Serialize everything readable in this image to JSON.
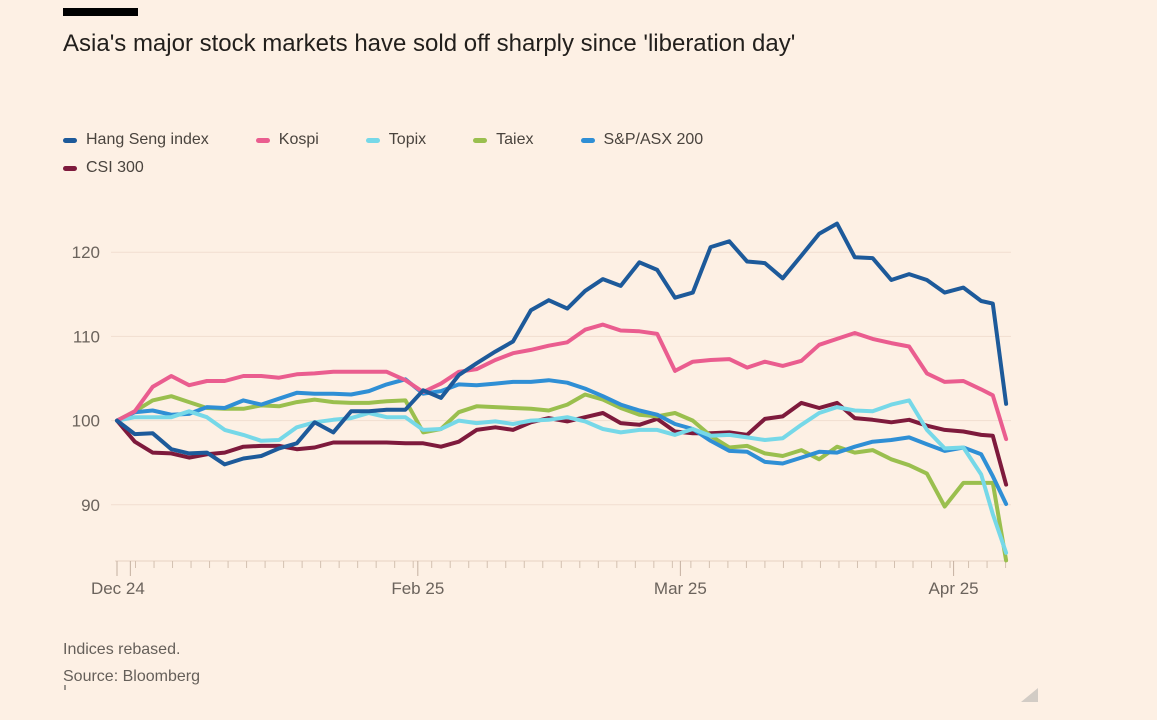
{
  "header": {
    "title": "Asia's major stock markets have sold off sharply since 'liberation day'"
  },
  "footer": {
    "note": "Indices rebased.",
    "source": "Source: Bloomberg"
  },
  "legend": {
    "rows": [
      [
        0,
        1,
        2,
        3,
        4
      ],
      [
        5
      ]
    ]
  },
  "chart_data": {
    "type": "line",
    "title": "Asia's major stock markets have sold off sharply since 'liberation day'",
    "xlabel": "",
    "ylabel": "",
    "note": "Indices rebased.",
    "source": "Source: Bloomberg",
    "grid": "horizontal-only",
    "legend_position": "top",
    "ylim": [
      83,
      125
    ],
    "y_ticks": [
      {
        "label": "90",
        "v": 90
      },
      {
        "label": "100",
        "v": 100
      },
      {
        "label": "110",
        "v": 110
      },
      {
        "label": "120",
        "v": 120
      }
    ],
    "x_axis": {
      "labels": [
        {
          "label": "Dec 24",
          "t": 0.1
        },
        {
          "label": "Feb 25",
          "t": 33.8
        },
        {
          "label": "Mar 25",
          "t": 63.3
        },
        {
          "label": "Apr 25",
          "t": 94.0
        }
      ],
      "major_ticks_t": [
        0,
        1.5,
        33.8,
        63.3,
        94.0
      ],
      "minor_tick_step": 2.08,
      "t_min": 0,
      "t_max": 100
    },
    "draw_order": [
      5,
      3,
      4,
      2,
      1,
      0
    ],
    "t": [
      0,
      2,
      4,
      6.1,
      8.1,
      10.1,
      12.1,
      14.2,
      16.2,
      18.2,
      20.2,
      22.2,
      24.3,
      26.3,
      28.3,
      30.3,
      32.4,
      34.4,
      36.4,
      38.4,
      40.4,
      42.5,
      44.5,
      46.5,
      48.5,
      50.6,
      52.6,
      54.6,
      56.6,
      58.7,
      60.7,
      62.7,
      64.7,
      66.7,
      68.8,
      70.8,
      72.8,
      74.8,
      76.9,
      78.9,
      80.9,
      82.9,
      84.9,
      87,
      89,
      91,
      93,
      95.1,
      97.1,
      98.4,
      99.9
    ],
    "series": [
      {
        "name": "Hang Seng index",
        "color": "#1d5a9a",
        "values": [
          100,
          98.4,
          98.5,
          96.6,
          96.1,
          96.2,
          94.8,
          95.5,
          95.8,
          96.7,
          97.3,
          99.8,
          98.6,
          101.1,
          101.1,
          101.3,
          101.3,
          103.6,
          102.7,
          105.4,
          106.8,
          108.2,
          109.4,
          113.1,
          114.3,
          113.3,
          115.4,
          116.8,
          116,
          118.8,
          117.9,
          114.6,
          115.2,
          120.6,
          121.3,
          118.9,
          118.7,
          116.9,
          119.6,
          122.2,
          123.4,
          119.4,
          119.3,
          116.7,
          117.4,
          116.7,
          115.2,
          115.8,
          114.2,
          113.9,
          102
        ]
      },
      {
        "name": "Kospi",
        "color": "#ea5d8f",
        "values": [
          100,
          101.1,
          104,
          105.3,
          104.2,
          104.7,
          104.7,
          105.3,
          105.3,
          105.1,
          105.5,
          105.6,
          105.8,
          105.8,
          105.8,
          105.8,
          104.8,
          103.4,
          104.4,
          105.8,
          106.1,
          107.2,
          108,
          108.4,
          108.9,
          109.3,
          110.8,
          111.4,
          110.7,
          110.6,
          110.3,
          105.9,
          107,
          107.2,
          107.3,
          106.3,
          107,
          106.5,
          107.1,
          109,
          109.7,
          110.4,
          109.7,
          109.2,
          108.8,
          105.6,
          104.6,
          104.7,
          103.7,
          103,
          97.8
        ]
      },
      {
        "name": "Topix",
        "color": "#76d8e8",
        "values": [
          100,
          100.4,
          100.4,
          100.4,
          101.1,
          100.4,
          98.9,
          98.3,
          97.6,
          97.7,
          99.2,
          99.8,
          100.1,
          100.3,
          100.9,
          100.4,
          100.4,
          98.9,
          99,
          100,
          99.7,
          99.9,
          99.6,
          100,
          100.1,
          100.4,
          99.9,
          99,
          98.6,
          98.9,
          98.9,
          98.3,
          99,
          98.2,
          98.3,
          98,
          97.7,
          97.9,
          99.5,
          100.9,
          101.6,
          101.2,
          101.1,
          101.9,
          102.4,
          98.9,
          96.7,
          96.8,
          93.6,
          88.9,
          84.3
        ]
      },
      {
        "name": "Taiex",
        "color": "#9abf4e",
        "values": [
          100,
          101.1,
          102.4,
          102.9,
          102.2,
          101.5,
          101.4,
          101.4,
          101.8,
          101.7,
          102.2,
          102.5,
          102.2,
          102.1,
          102.1,
          102.3,
          102.4,
          98.6,
          99,
          101,
          101.7,
          101.6,
          101.5,
          101.4,
          101.2,
          101.9,
          103.1,
          102.5,
          101.5,
          100.7,
          100.5,
          100.9,
          100,
          98.2,
          96.8,
          97,
          96.1,
          95.8,
          96.5,
          95.4,
          96.9,
          96.2,
          96.5,
          95.4,
          94.7,
          93.7,
          89.8,
          92.6,
          92.6,
          92.6,
          83.4
        ]
      },
      {
        "name": "S&P/ASX 200",
        "color": "#2f8fd5",
        "values": [
          100,
          101,
          101.2,
          100.7,
          100.8,
          101.6,
          101.5,
          102.4,
          101.9,
          102.6,
          103.3,
          103.2,
          103.2,
          103.1,
          103.5,
          104.3,
          104.9,
          103.2,
          103.5,
          104.3,
          104.2,
          104.4,
          104.6,
          104.6,
          104.8,
          104.5,
          103.8,
          102.9,
          101.9,
          101.2,
          100.7,
          99.6,
          99,
          97.6,
          96.4,
          96.3,
          95.1,
          94.9,
          95.6,
          96.3,
          96.2,
          96.9,
          97.5,
          97.7,
          98,
          97.2,
          96.4,
          96.8,
          96,
          93.4,
          90.1
        ]
      },
      {
        "name": "CSI 300",
        "color": "#7e1a3c",
        "values": [
          100,
          97.5,
          96.2,
          96.1,
          95.6,
          96,
          96.2,
          96.9,
          97,
          97,
          96.6,
          96.8,
          97.4,
          97.4,
          97.4,
          97.4,
          97.3,
          97.3,
          96.9,
          97.5,
          98.9,
          99.2,
          98.9,
          99.8,
          100.3,
          99.9,
          100.4,
          100.9,
          99.7,
          99.5,
          100.2,
          98.7,
          98.5,
          98.5,
          98.6,
          98.3,
          100.2,
          100.5,
          102.1,
          101.5,
          102.1,
          100.3,
          100.1,
          99.8,
          100.1,
          99.4,
          98.9,
          98.7,
          98.3,
          98.2,
          92.4
        ]
      }
    ]
  }
}
